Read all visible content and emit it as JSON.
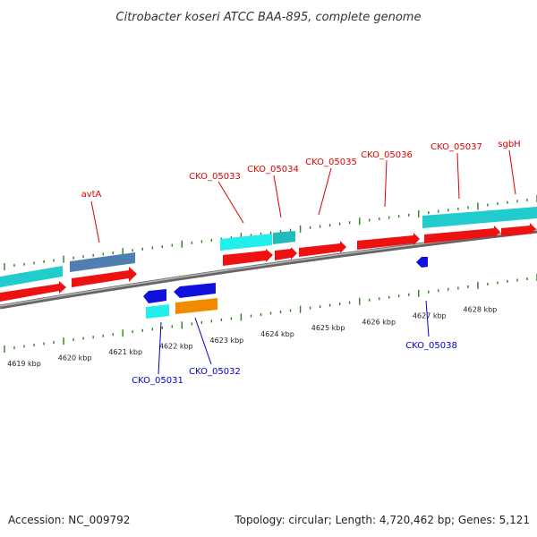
{
  "title": "Citrobacter koseri ATCC BAA-895, complete genome",
  "footer": {
    "accession": "Accession: NC_009792",
    "summary": "Topology: circular; Length: 4,720,462 bp; Genes: 5,121"
  },
  "colors": {
    "backbone": "#8a8a8a",
    "tick": "#2e7d1e",
    "forward_label": "#dd0000",
    "reverse_label": "#0000cc",
    "cds": "#ee1111",
    "gene_cyan": "#22cccc",
    "gene_steel": "#4f7fb0",
    "gene_blue": "#1010dd",
    "gene_orange": "#f28a00"
  },
  "scale": {
    "unit": "kbp",
    "labels": [
      {
        "kb": 4619,
        "text": "4619 kbp"
      },
      {
        "kb": 4620,
        "text": "4620 kbp"
      },
      {
        "kb": 4621,
        "text": "4621 kbp"
      },
      {
        "kb": 4622,
        "text": "4622 kbp"
      },
      {
        "kb": 4623,
        "text": "4623 kbp"
      },
      {
        "kb": 4624,
        "text": "4624 kbp"
      },
      {
        "kb": 4625,
        "text": "4625 kbp"
      },
      {
        "kb": 4626,
        "text": "4626 kbp"
      },
      {
        "kb": 4627,
        "text": "4627 kbp"
      },
      {
        "kb": 4628,
        "text": "4628 kbp"
      }
    ]
  },
  "genes_forward": [
    {
      "name": "avtA",
      "start_kb": 4620.3,
      "end_kb": 4621.5
    },
    {
      "name": "CKO_05033",
      "start_kb": 4623.0,
      "end_kb": 4624.0
    },
    {
      "name": "CKO_05034",
      "start_kb": 4624.0,
      "end_kb": 4624.5
    },
    {
      "name": "CKO_05035",
      "start_kb": 4624.5,
      "end_kb": 4625.4
    },
    {
      "name": "CKO_05036",
      "start_kb": 4625.6,
      "end_kb": 4626.8
    },
    {
      "name": "CKO_05037",
      "start_kb": 4626.8,
      "end_kb": 4628.3
    },
    {
      "name": "sgbH",
      "start_kb": 4628.3,
      "end_kb": 4629.0
    }
  ],
  "genes_reverse": [
    {
      "name": "CKO_05031",
      "start_kb": 4621.9,
      "end_kb": 4622.4
    },
    {
      "name": "CKO_05032",
      "start_kb": 4622.4,
      "end_kb": 4623.2
    },
    {
      "name": "CKO_05038",
      "start_kb": 4626.8,
      "end_kb": 4627.0
    }
  ]
}
